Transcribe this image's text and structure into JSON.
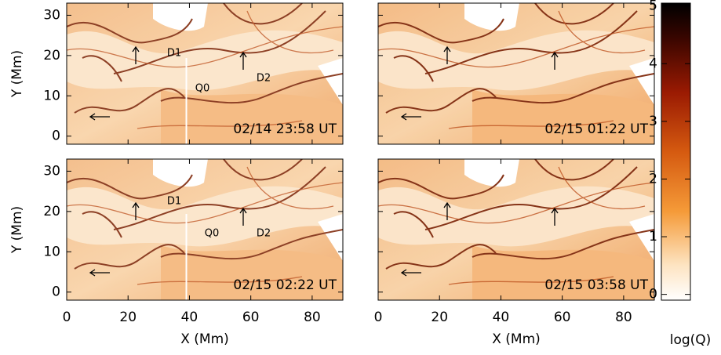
{
  "chart_data": [
    {
      "type": "image",
      "label": "02/14 23:58 UT",
      "annotations": [
        "D1",
        "Q0",
        "D2"
      ],
      "xlim": [
        0,
        90
      ],
      "ylim": [
        -2,
        33
      ],
      "yticks": [
        0,
        10,
        20,
        30
      ],
      "ylabel": "Y (Mm)"
    },
    {
      "type": "image",
      "label": "02/15 01:22 UT",
      "xlim": [
        0,
        90
      ],
      "ylim": [
        -2,
        33
      ]
    },
    {
      "type": "image",
      "label": "02/15 02:22 UT",
      "annotations": [
        "D1",
        "Q0",
        "D2"
      ],
      "xlim": [
        0,
        90
      ],
      "ylim": [
        -2,
        33
      ],
      "xticks": [
        0,
        20,
        40,
        60,
        80
      ],
      "yticks": [
        0,
        10,
        20,
        30
      ],
      "xlabel": "X (Mm)",
      "ylabel": "Y (Mm)"
    },
    {
      "type": "image",
      "label": "02/15 03:58 UT",
      "xlim": [
        0,
        90
      ],
      "ylim": [
        -2,
        33
      ],
      "xticks": [
        0,
        20,
        40,
        60,
        80
      ],
      "xlabel": "X (Mm)"
    },
    {
      "type": "colorbar",
      "label": "log(Q)",
      "ylim": [
        -0.1,
        5.05
      ],
      "yticks": [
        0,
        1,
        2,
        3,
        4,
        5
      ]
    }
  ]
}
